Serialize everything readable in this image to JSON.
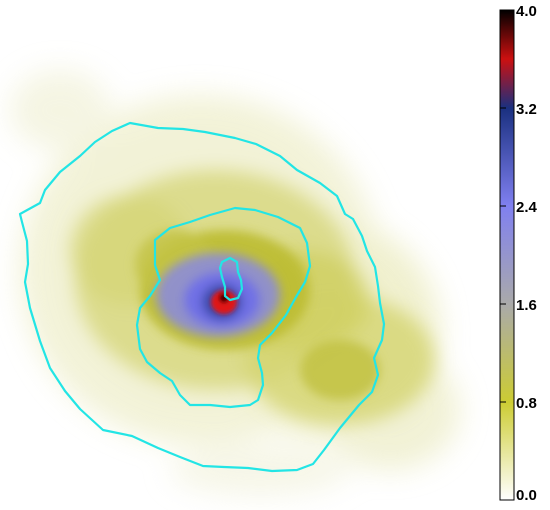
{
  "colorbar": {
    "tick_labels": [
      "4.0",
      "3.2",
      "2.4",
      "1.6",
      "0.8",
      "0.0"
    ],
    "range": [
      0.0,
      4.0
    ],
    "gradient_stops": [
      {
        "value": 0.0,
        "color": "#ffffff"
      },
      {
        "value": 0.8,
        "color": "#cccc33"
      },
      {
        "value": 1.6,
        "color": "#aaaaaa"
      },
      {
        "value": 2.4,
        "color": "#8080f0"
      },
      {
        "value": 3.2,
        "color": "#1a3080"
      },
      {
        "value": 3.6,
        "color": "#cc1010"
      },
      {
        "value": 4.0,
        "color": "#000000"
      }
    ]
  },
  "colors": {
    "contour": "#22e5e5",
    "low_emission": "#d6d670",
    "mid_emission": "#b9b930",
    "blue_halo": "#8888ee",
    "core_red": "#e0101a"
  }
}
